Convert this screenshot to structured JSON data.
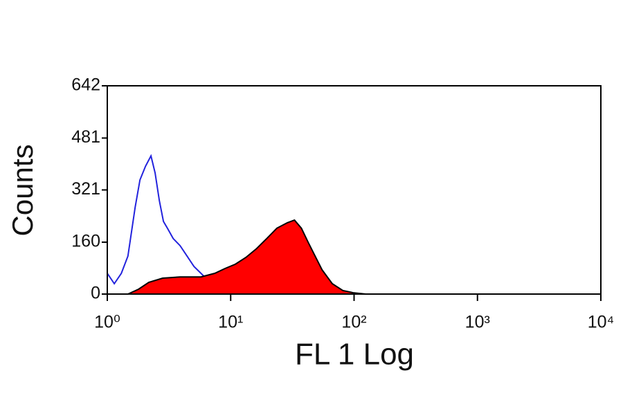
{
  "chart_data": {
    "type": "histogram",
    "x_label": "FL 1 Log",
    "y_label": "Counts",
    "xscale": "log",
    "xlim": [
      1,
      10000
    ],
    "xticks": [
      {
        "value": 1,
        "label": "10⁰"
      },
      {
        "value": 10,
        "label": "10¹"
      },
      {
        "value": 100,
        "label": "10²"
      },
      {
        "value": 1000,
        "label": "10³"
      },
      {
        "value": 10000,
        "label": "10⁴"
      }
    ],
    "ylim": [
      0,
      642
    ],
    "yticks": [
      0,
      160,
      321,
      481,
      642
    ],
    "series": [
      {
        "color": "#2222dd",
        "fill": false,
        "x": [
          1.0,
          1.14,
          1.3,
          1.47,
          1.68,
          1.84,
          2.04,
          2.26,
          2.44,
          2.64,
          2.85,
          3.08,
          3.42,
          3.89,
          4.43,
          5.04,
          5.74,
          6.53,
          8.44,
          10.9,
          15.7
        ],
        "values": [
          64,
          32,
          64,
          117,
          267,
          352,
          394,
          426,
          373,
          288,
          224,
          202,
          171,
          149,
          117,
          85,
          64,
          43,
          26,
          15,
          4
        ]
      },
      {
        "color": "#ff0000",
        "edgecolor": "#000000",
        "fill": true,
        "x": [
          1.47,
          1.79,
          2.17,
          2.81,
          3.89,
          5.74,
          7.43,
          9.01,
          10.9,
          13.3,
          16.1,
          19.6,
          23.7,
          28.8,
          32.9,
          37.4,
          42.4,
          48.3,
          55.0,
          66.6,
          81.0,
          98.3,
          124
        ],
        "values": [
          0,
          15,
          36,
          49,
          53,
          53,
          64,
          79,
          92,
          113,
          139,
          171,
          203,
          220,
          228,
          203,
          160,
          117,
          75,
          32,
          11,
          4,
          0
        ]
      }
    ]
  }
}
